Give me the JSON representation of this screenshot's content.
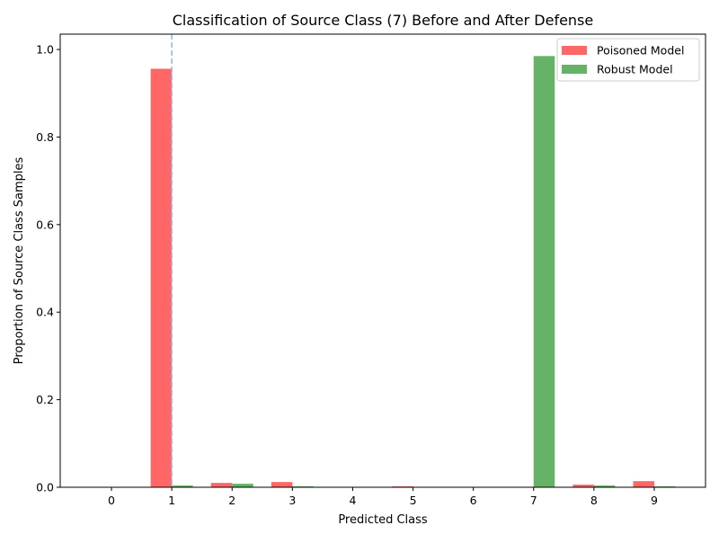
{
  "chart_data": {
    "type": "bar",
    "title": "Classification of Source Class (7) Before and After Defense",
    "xlabel": "Predicted Class",
    "ylabel": "Proportion of Source Class Samples",
    "categories": [
      "0",
      "1",
      "2",
      "3",
      "4",
      "5",
      "6",
      "7",
      "8",
      "9"
    ],
    "series": [
      {
        "name": "Poisoned Model",
        "color": "#ff6666",
        "values": [
          0.0,
          0.956,
          0.01,
          0.012,
          0.0,
          0.002,
          0.0,
          0.0,
          0.006,
          0.014
        ]
      },
      {
        "name": "Robust Model",
        "color": "#66b266",
        "values": [
          0.0,
          0.004,
          0.008,
          0.002,
          0.0,
          0.0,
          0.0,
          0.985,
          0.004,
          0.002
        ]
      }
    ],
    "ylim": [
      0,
      1.035
    ],
    "yticks": [
      "0.0",
      "0.2",
      "0.4",
      "0.6",
      "0.8",
      "1.0"
    ],
    "reference_line": {
      "x": 1,
      "color": "#a0b4f0",
      "style": "dashed"
    },
    "legend": {
      "position": "top-right"
    },
    "grid": false
  }
}
